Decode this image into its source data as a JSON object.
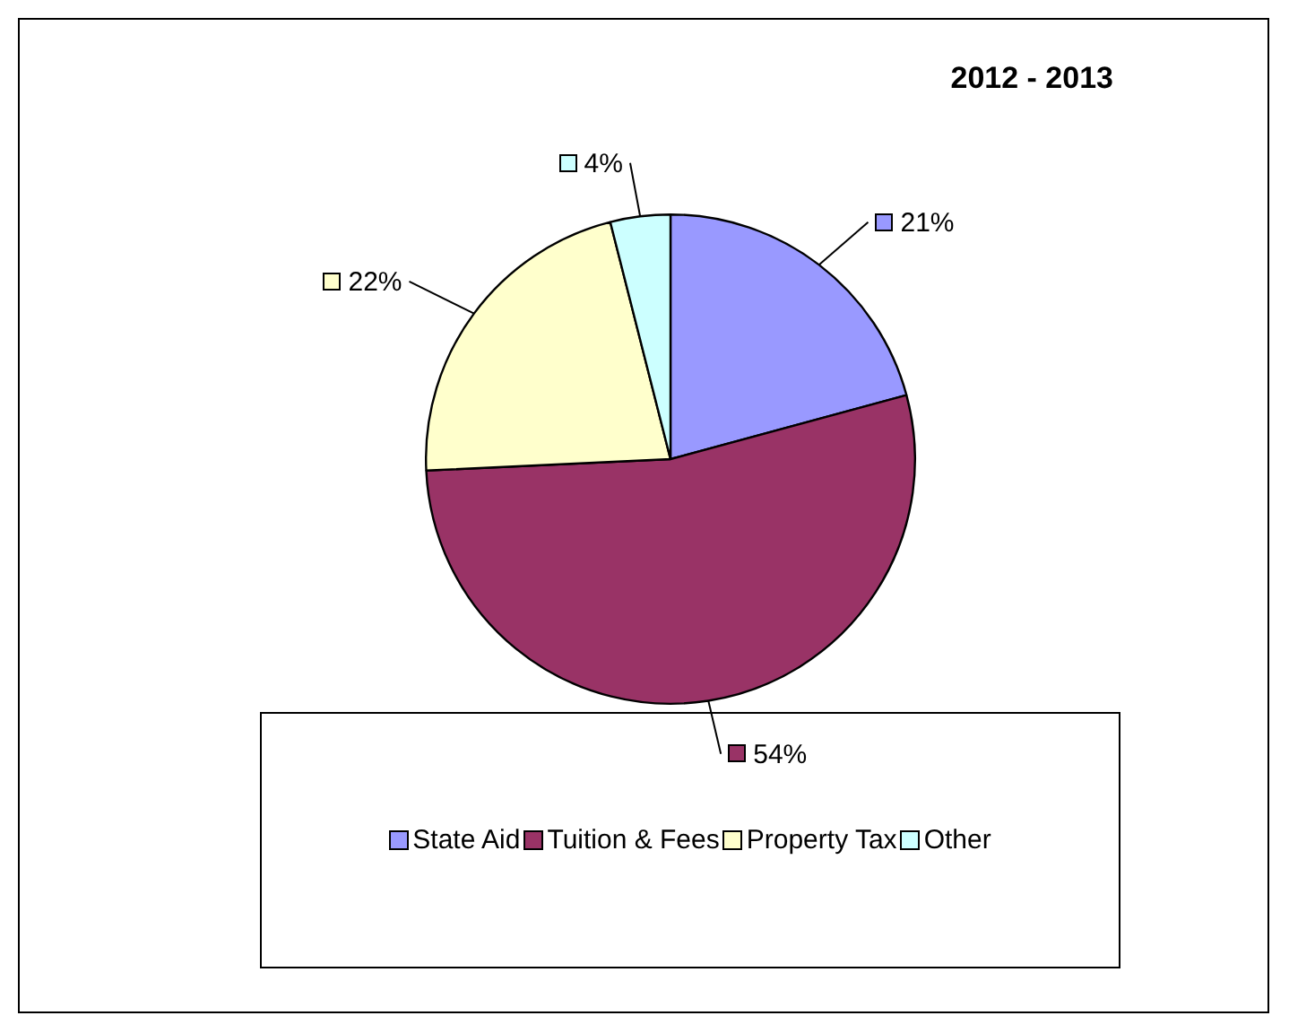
{
  "chart_data": {
    "type": "pie",
    "title": "2012 - 2013",
    "categories": [
      "State Aid",
      "Tuition & Fees",
      "Property Tax",
      "Other"
    ],
    "values": [
      21,
      54,
      22,
      4
    ],
    "colors": [
      "#9999ff",
      "#993366",
      "#ffffcc",
      "#ccffff"
    ],
    "value_labels": [
      "21%",
      "54%",
      "22%",
      "4%"
    ],
    "legend": "bottom"
  }
}
